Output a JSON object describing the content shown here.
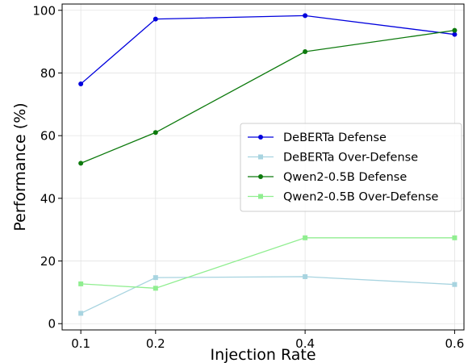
{
  "chart_data": {
    "type": "line",
    "title": "",
    "xlabel": "Injection Rate",
    "ylabel": "Performance (%)",
    "x": [
      0.1,
      0.2,
      0.4,
      0.6
    ],
    "x_tick_labels": [
      "0.1",
      "0.2",
      "0.4",
      "0.6"
    ],
    "y_ticks": [
      0,
      20,
      40,
      60,
      80,
      100
    ],
    "y_tick_labels": [
      "0",
      "20",
      "40",
      "60",
      "80",
      "100"
    ],
    "ylim": [
      -2,
      102
    ],
    "grid": true,
    "legend_position": "center-right",
    "series": [
      {
        "name": "DeBERTa Defense",
        "values": [
          76.5,
          97.2,
          98.3,
          92.3
        ],
        "color": "#0000dd",
        "marker": "circle"
      },
      {
        "name": "DeBERTa Over-Defense",
        "values": [
          3.3,
          14.7,
          15.0,
          12.5
        ],
        "color": "#a8d4e0",
        "marker": "square"
      },
      {
        "name": "Qwen2-0.5B Defense",
        "values": [
          51.2,
          61.0,
          86.8,
          93.6
        ],
        "color": "#0d7a0d",
        "marker": "circle"
      },
      {
        "name": "Qwen2-0.5B Over-Defense",
        "values": [
          12.7,
          11.3,
          27.4,
          27.4
        ],
        "color": "#90ee90",
        "marker": "square"
      }
    ]
  }
}
